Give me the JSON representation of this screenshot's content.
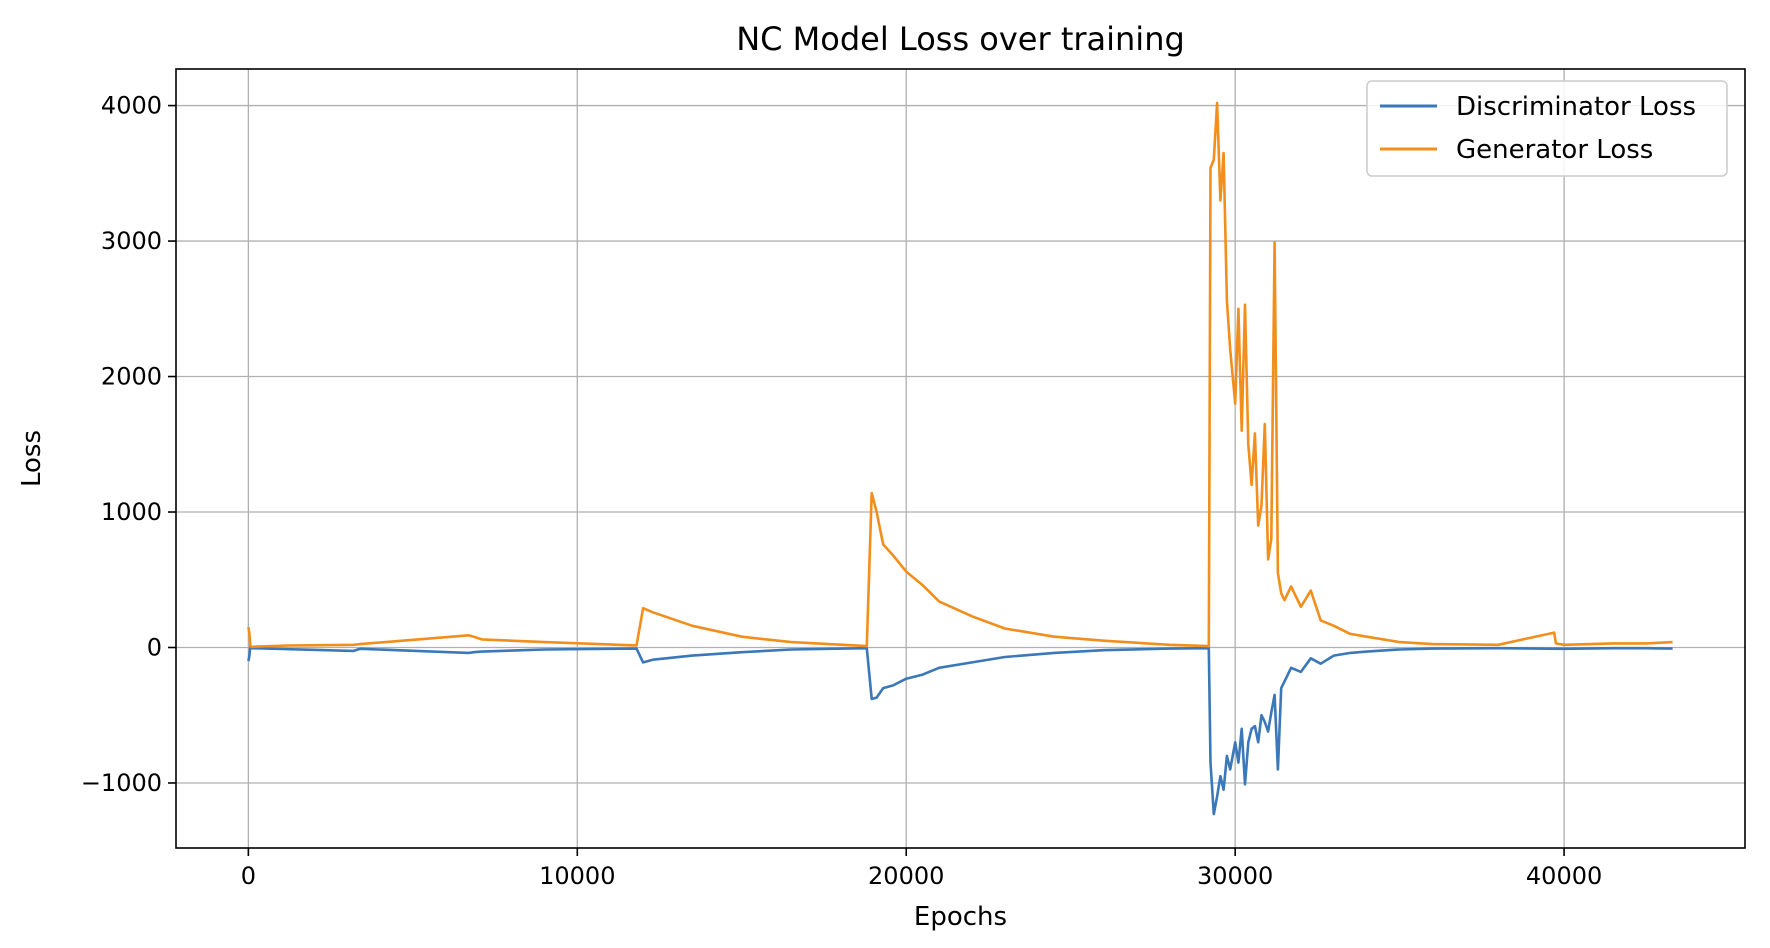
{
  "chart_data": {
    "type": "line",
    "title": "NC Model Loss over training",
    "xlabel": "Epochs",
    "ylabel": "Loss",
    "xlim": [
      -2200,
      45500
    ],
    "ylim": [
      -1480,
      4270
    ],
    "xticks": [
      0,
      10000,
      20000,
      30000,
      40000
    ],
    "xtick_labels": [
      "0",
      "10000",
      "20000",
      "30000",
      "40000"
    ],
    "yticks": [
      -1000,
      0,
      1000,
      2000,
      3000,
      4000
    ],
    "ytick_labels": [
      "−1000",
      "0",
      "1000",
      "2000",
      "3000",
      "4000"
    ],
    "grid": true,
    "legend_position": "top-right",
    "series": [
      {
        "name": "Discriminator Loss",
        "color": "#3a78b9",
        "x": [
          0,
          30,
          60,
          100,
          3200,
          3400,
          6700,
          6850,
          7100,
          9000,
          11800,
          12000,
          12300,
          13500,
          15000,
          16500,
          18800,
          18950,
          19100,
          19300,
          19600,
          20000,
          20500,
          21000,
          22000,
          23000,
          24500,
          26000,
          28000,
          29200,
          29250,
          29350,
          29450,
          29550,
          29650,
          29750,
          29850,
          30000,
          30100,
          30200,
          30300,
          30400,
          30500,
          30600,
          30700,
          30800,
          30900,
          31000,
          31100,
          31200,
          31300,
          31400,
          31500,
          31700,
          32000,
          32300,
          32600,
          33000,
          33500,
          34000,
          35000,
          36000,
          38000,
          40000,
          41500,
          42500,
          43300
        ],
        "y": [
          -100,
          -60,
          10,
          -5,
          -25,
          -10,
          -40,
          -35,
          -30,
          -15,
          -8,
          -110,
          -90,
          -60,
          -35,
          -15,
          -5,
          -380,
          -370,
          -300,
          -280,
          -230,
          -200,
          -150,
          -110,
          -70,
          -40,
          -20,
          -8,
          -5,
          -850,
          -1230,
          -1100,
          -950,
          -1050,
          -800,
          -900,
          -700,
          -850,
          -600,
          -1010,
          -700,
          -600,
          -580,
          -700,
          -500,
          -550,
          -620,
          -480,
          -350,
          -900,
          -300,
          -250,
          -150,
          -180,
          -80,
          -120,
          -60,
          -40,
          -30,
          -15,
          -8,
          -5,
          -10,
          -5,
          -5,
          -8
        ]
      },
      {
        "name": "Generator Loss",
        "color": "#f28e1c",
        "x": [
          0,
          30,
          60,
          100,
          1200,
          3200,
          3400,
          6700,
          6850,
          7100,
          9000,
          11800,
          12000,
          12300,
          13500,
          15000,
          16500,
          18800,
          18950,
          19100,
          19300,
          19600,
          20000,
          20500,
          21000,
          22000,
          23000,
          24500,
          26000,
          28000,
          29200,
          29250,
          29350,
          29450,
          29550,
          29650,
          29750,
          29850,
          30000,
          30100,
          30200,
          30300,
          30400,
          30500,
          30600,
          30700,
          30800,
          30900,
          31000,
          31100,
          31200,
          31300,
          31400,
          31500,
          31700,
          32000,
          32300,
          32600,
          33000,
          33500,
          34000,
          35000,
          36000,
          38000,
          39700,
          39750,
          40000,
          41500,
          42500,
          43300
        ],
        "y": [
          150,
          100,
          10,
          5,
          15,
          20,
          25,
          90,
          80,
          60,
          40,
          15,
          290,
          260,
          160,
          80,
          40,
          10,
          1140,
          1000,
          760,
          680,
          560,
          460,
          340,
          230,
          140,
          80,
          50,
          20,
          10,
          3540,
          3600,
          4020,
          3300,
          3650,
          2560,
          2200,
          1800,
          2500,
          1600,
          2530,
          1500,
          1200,
          1580,
          900,
          1050,
          1650,
          650,
          800,
          2990,
          550,
          400,
          350,
          450,
          300,
          420,
          200,
          160,
          100,
          80,
          40,
          25,
          20,
          110,
          30,
          20,
          30,
          30,
          40
        ]
      }
    ]
  }
}
